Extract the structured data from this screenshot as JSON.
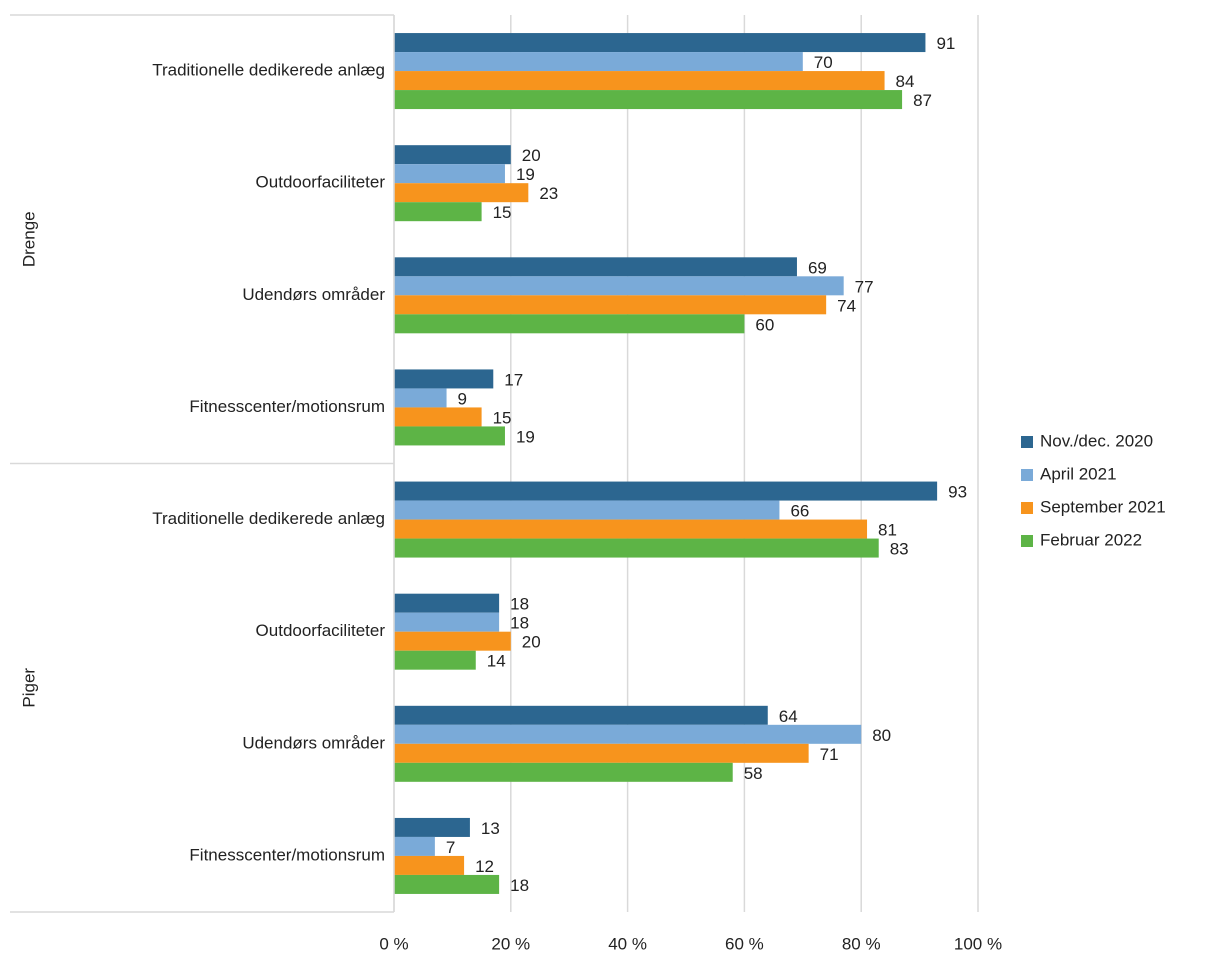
{
  "chart_data": {
    "type": "bar",
    "orientation": "horizontal",
    "groups": [
      {
        "label": "Drenge",
        "categories": [
          "Traditionelle dedikerede anlæg",
          "Outdoorfaciliteter",
          "Udendørs områder",
          "Fitnesscenter/motionsrum"
        ]
      },
      {
        "label": "Piger",
        "categories": [
          "Traditionelle dedikerede anlæg",
          "Outdoorfaciliteter",
          "Udendørs områder",
          "Fitnesscenter/motionsrum"
        ]
      }
    ],
    "series": [
      {
        "name": "Nov./dec. 2020",
        "color": "#2c6690",
        "values": [
          91,
          20,
          69,
          17,
          93,
          18,
          64,
          13
        ]
      },
      {
        "name": "April 2021",
        "color": "#7aaad8",
        "values": [
          70,
          19,
          77,
          9,
          66,
          18,
          80,
          7
        ]
      },
      {
        "name": "September 2021",
        "color": "#f7941d",
        "values": [
          84,
          23,
          74,
          15,
          81,
          20,
          71,
          12
        ]
      },
      {
        "name": "Februar 2022",
        "color": "#5db446",
        "values": [
          87,
          15,
          60,
          19,
          83,
          14,
          58,
          18
        ]
      }
    ],
    "xlim": [
      0,
      100
    ],
    "xticks": [
      {
        "value": 0,
        "label": "0 %"
      },
      {
        "value": 20,
        "label": "20 %"
      },
      {
        "value": 40,
        "label": "40 %"
      },
      {
        "value": 60,
        "label": "60 %"
      },
      {
        "value": 80,
        "label": "80 %"
      },
      {
        "value": 100,
        "label": "100 %"
      }
    ],
    "grid": true,
    "legend": "right"
  }
}
